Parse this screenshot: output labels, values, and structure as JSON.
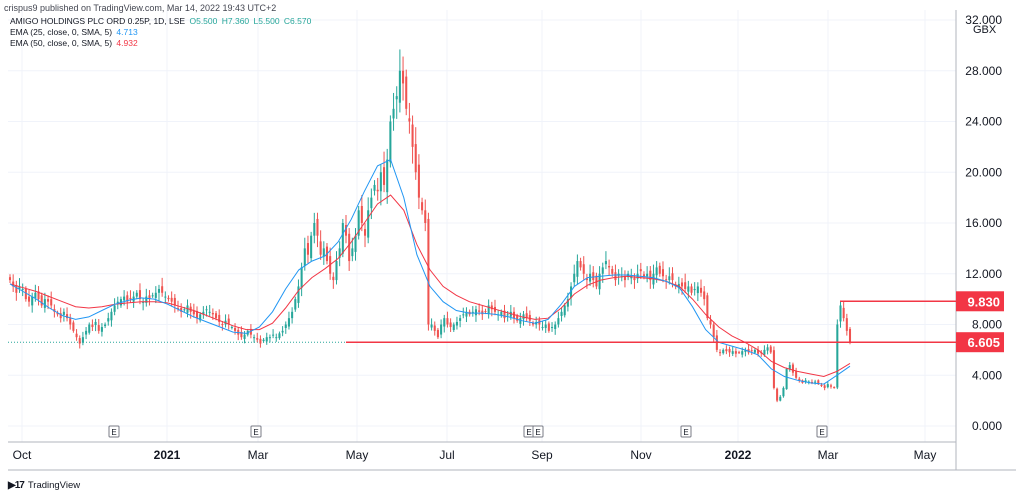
{
  "publisher": "crispus9 published on TradingView.com, Mar 14, 2022 19:43 UTC+2",
  "brand": "TradingView",
  "currency": "GBX",
  "legend": {
    "main": {
      "label": "AMIGO HOLDINGS PLC ORD 0.25P, 1D, LSE",
      "o": "O5.500",
      "h": "H7.360",
      "l": "L5.500",
      "c": "C6.570"
    },
    "ema25": {
      "label": "EMA (25, close, 0, SMA, 5)",
      "value": "4.713"
    },
    "ema50": {
      "label": "EMA (50, close, 0, SMA, 5)",
      "value": "4.932"
    }
  },
  "colors": {
    "up": "#26a69a",
    "down": "#ef5350",
    "ema25": "#2196f3",
    "ema50": "#f23645",
    "line": "#f23645",
    "text": "#131722"
  },
  "chart_data": {
    "type": "candlestick",
    "ylim": [
      0,
      32
    ],
    "yticks": [
      "0.000",
      "4.000",
      "8.000",
      "12.000",
      "16.000",
      "20.000",
      "24.000",
      "28.000",
      "32.000"
    ],
    "xticks": [
      "Oct",
      "2021",
      "Mar",
      "May",
      "Jul",
      "Sep",
      "Nov",
      "2022",
      "Mar",
      "May"
    ],
    "earnings_markers": [
      "E",
      "E",
      "E",
      "E",
      "E",
      "E"
    ],
    "horizontal_lines": [
      {
        "value": 6.605,
        "label": "6.605"
      },
      {
        "value": 9.83,
        "label": "9.830"
      }
    ],
    "close_series": [
      11.5,
      11,
      10.5,
      11,
      10.8,
      10,
      9.8,
      10.2,
      10.5,
      10,
      9.5,
      10,
      9.8,
      9.5,
      9,
      8.8,
      8.5,
      9,
      8.5,
      8,
      7.5,
      7,
      6.5,
      7,
      7.5,
      8,
      7.8,
      8.2,
      7.5,
      7.8,
      8,
      8.5,
      9,
      9.5,
      9.8,
      10,
      10.2,
      9.8,
      10,
      10.2,
      10.5,
      10,
      9.8,
      10.2,
      10,
      10.3,
      10.5,
      10.8,
      10.5,
      10.2,
      10,
      9.8,
      9.5,
      9.3,
      9,
      9.2,
      9.5,
      9,
      8.8,
      8.5,
      8.8,
      9,
      9.2,
      9,
      8.8,
      8.5,
      8.2,
      8,
      8.3,
      8,
      7.8,
      7.5,
      7.2,
      7,
      7.2,
      7.5,
      7.2,
      7,
      6.8,
      6.5,
      6.8,
      7,
      7,
      7.2,
      7,
      7.3,
      7.5,
      8,
      8.5,
      9,
      10,
      11,
      12.5,
      14,
      13.5,
      15,
      16,
      15,
      13.5,
      14,
      13,
      12,
      11.5,
      13,
      14,
      16,
      15,
      13,
      14,
      15,
      17,
      16,
      15,
      17,
      18,
      19,
      18.5,
      20,
      19,
      21,
      24,
      25,
      26,
      28,
      27,
      25,
      24,
      22,
      20,
      18,
      17,
      16,
      8,
      8,
      7.5,
      7,
      8,
      8.5,
      8,
      7.8,
      8,
      8.2,
      8.5,
      8.8,
      9,
      8.8,
      9,
      9.2,
      9,
      8.8,
      9,
      9.5,
      9.2,
      9,
      8.8,
      9,
      8.5,
      8.8,
      9,
      8.5,
      8.3,
      8.5,
      8.8,
      8.5,
      8.3,
      8,
      8.2,
      8,
      7.8,
      8,
      7.5,
      7.8,
      8,
      8.5,
      9,
      9.5,
      10,
      11,
      12,
      13,
      12.5,
      12,
      11.5,
      12,
      11.5,
      11,
      12,
      12.5,
      13,
      12.5,
      12,
      11.5,
      12,
      11.8,
      11.5,
      12,
      11.8,
      11.5,
      12,
      12.2,
      11.8,
      12,
      11.5,
      12,
      12.5,
      12,
      11.8,
      11.5,
      11.8,
      11.5,
      11,
      11.2,
      11,
      10.8,
      11,
      10.5,
      10.8,
      11,
      10.5,
      10,
      8.5,
      8,
      7,
      6,
      5.8,
      6,
      5.9,
      5.8,
      5.9,
      5.7,
      5.8,
      5.9,
      6,
      5.8,
      5.9,
      6,
      5.7,
      5.8,
      6,
      6.2,
      5.8,
      3,
      2,
      2.3,
      3,
      4.5,
      4.8,
      4.2,
      3.8,
      3.6,
      3.4,
      3.6,
      3.5,
      3.4,
      3.5,
      3.3,
      3.2,
      3,
      3.3,
      3.1,
      3,
      8,
      9.5,
      8.5,
      7.5,
      6.57
    ],
    "ema25_series": [
      11.2,
      10.6,
      10.0,
      9.3,
      8.7,
      8.4,
      8.6,
      9.1,
      9.6,
      9.9,
      10.1,
      10.0,
      9.6,
      9.1,
      8.6,
      8.2,
      7.8,
      7.4,
      7.3,
      7.8,
      9.0,
      10.8,
      12.3,
      13.0,
      13.4,
      14.5,
      16.3,
      18.5,
      20.5,
      21.0,
      18.0,
      13.5,
      11.0,
      9.8,
      9.1,
      8.9,
      8.9,
      8.8,
      8.6,
      8.3,
      8.1,
      8.4,
      9.6,
      11.0,
      11.7,
      11.8,
      11.9,
      11.9,
      11.8,
      11.7,
      11.4,
      10.9,
      9.4,
      7.6,
      6.6,
      6.3,
      6.0,
      5.6,
      4.5,
      3.9,
      3.6,
      3.4,
      3.3,
      4.0,
      4.713
    ],
    "ema50_series": [
      11.2,
      10.9,
      10.6,
      10.2,
      9.8,
      9.4,
      9.3,
      9.4,
      9.6,
      9.7,
      9.8,
      9.8,
      9.7,
      9.4,
      9.1,
      8.7,
      8.3,
      7.9,
      7.6,
      7.6,
      8.1,
      9.3,
      10.7,
      11.7,
      12.4,
      13.2,
      14.5,
      16.0,
      17.5,
      18.2,
      17.0,
      14.3,
      12.3,
      11.0,
      10.3,
      9.8,
      9.5,
      9.2,
      8.9,
      8.6,
      8.4,
      8.5,
      9.3,
      10.4,
      11.1,
      11.5,
      11.7,
      11.8,
      11.7,
      11.6,
      11.4,
      11.0,
      10.0,
      8.8,
      7.8,
      7.1,
      6.6,
      6.0,
      5.1,
      4.6,
      4.3,
      4.1,
      3.9,
      4.3,
      4.932
    ]
  }
}
